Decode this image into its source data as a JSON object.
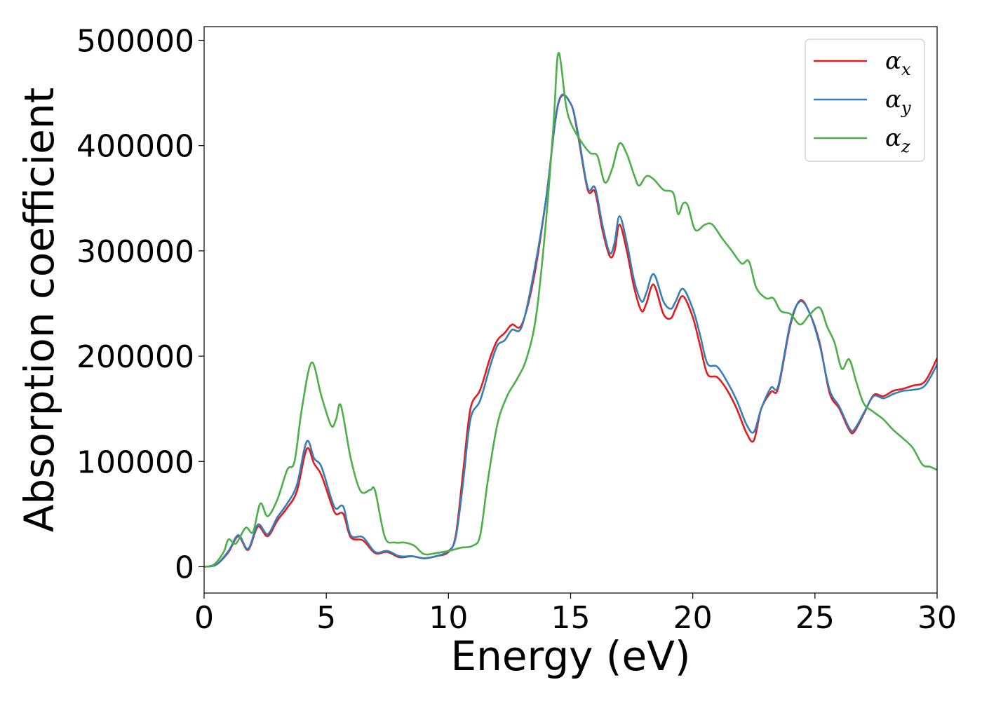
{
  "chart_data": {
    "type": "line",
    "title": "",
    "xlabel": "Energy (eV)",
    "ylabel": "Absorption coefficient",
    "xlim": [
      0,
      30
    ],
    "ylim": [
      -25000,
      513000
    ],
    "xticks": [
      0,
      5,
      10,
      15,
      20,
      25,
      30
    ],
    "yticks": [
      0,
      100000,
      200000,
      300000,
      400000,
      500000
    ],
    "grid": false,
    "legend_position": "top-right",
    "series": [
      {
        "name": "α_x",
        "legend_symbol": "α",
        "legend_sub": "x",
        "color": "#e41a1c",
        "points": [
          [
            0,
            0
          ],
          [
            0.5,
            2000
          ],
          [
            1.0,
            14000
          ],
          [
            1.4,
            29000
          ],
          [
            1.8,
            16000
          ],
          [
            2.2,
            38000
          ],
          [
            2.6,
            29000
          ],
          [
            3.0,
            44000
          ],
          [
            3.4,
            56000
          ],
          [
            3.8,
            72000
          ],
          [
            4.2,
            112000
          ],
          [
            4.5,
            98000
          ],
          [
            4.8,
            87000
          ],
          [
            5.2,
            60000
          ],
          [
            5.4,
            50000
          ],
          [
            5.7,
            50000
          ],
          [
            6.0,
            28000
          ],
          [
            6.5,
            25000
          ],
          [
            7.0,
            13000
          ],
          [
            7.5,
            14000
          ],
          [
            8.0,
            9000
          ],
          [
            8.5,
            10000
          ],
          [
            9.0,
            8000
          ],
          [
            9.5,
            10000
          ],
          [
            10.0,
            14000
          ],
          [
            10.3,
            30000
          ],
          [
            10.6,
            90000
          ],
          [
            10.9,
            150000
          ],
          [
            11.3,
            168000
          ],
          [
            11.7,
            198000
          ],
          [
            12.0,
            215000
          ],
          [
            12.3,
            222000
          ],
          [
            12.6,
            230000
          ],
          [
            13.0,
            230000
          ],
          [
            13.5,
            275000
          ],
          [
            14.0,
            350000
          ],
          [
            14.5,
            440000
          ],
          [
            15.0,
            440000
          ],
          [
            15.3,
            410000
          ],
          [
            15.7,
            358000
          ],
          [
            16.0,
            356000
          ],
          [
            16.3,
            320000
          ],
          [
            16.6,
            295000
          ],
          [
            16.8,
            300000
          ],
          [
            17.0,
            325000
          ],
          [
            17.3,
            300000
          ],
          [
            17.6,
            265000
          ],
          [
            17.9,
            243000
          ],
          [
            18.1,
            250000
          ],
          [
            18.4,
            268000
          ],
          [
            18.8,
            240000
          ],
          [
            19.1,
            236000
          ],
          [
            19.3,
            245000
          ],
          [
            19.6,
            257000
          ],
          [
            20.0,
            237000
          ],
          [
            20.3,
            210000
          ],
          [
            20.6,
            183000
          ],
          [
            21.0,
            180000
          ],
          [
            21.4,
            168000
          ],
          [
            21.8,
            150000
          ],
          [
            22.2,
            127000
          ],
          [
            22.5,
            120000
          ],
          [
            22.8,
            150000
          ],
          [
            23.2,
            166000
          ],
          [
            23.5,
            170000
          ],
          [
            24.0,
            230000
          ],
          [
            24.4,
            253000
          ],
          [
            24.8,
            240000
          ],
          [
            25.2,
            212000
          ],
          [
            25.6,
            165000
          ],
          [
            26.0,
            150000
          ],
          [
            26.4,
            130000
          ],
          [
            26.6,
            128000
          ],
          [
            27.0,
            145000
          ],
          [
            27.4,
            163000
          ],
          [
            27.8,
            162000
          ],
          [
            28.2,
            167000
          ],
          [
            28.6,
            169000
          ],
          [
            29.0,
            172000
          ],
          [
            29.5,
            176000
          ],
          [
            30.0,
            198000
          ]
        ]
      },
      {
        "name": "α_y",
        "legend_symbol": "α",
        "legend_sub": "y",
        "color": "#377eb8",
        "points": [
          [
            0,
            0
          ],
          [
            0.5,
            2000
          ],
          [
            1.0,
            15000
          ],
          [
            1.4,
            30000
          ],
          [
            1.8,
            17000
          ],
          [
            2.2,
            40000
          ],
          [
            2.6,
            31000
          ],
          [
            3.0,
            47000
          ],
          [
            3.4,
            60000
          ],
          [
            3.8,
            78000
          ],
          [
            4.2,
            119000
          ],
          [
            4.5,
            103000
          ],
          [
            4.8,
            95000
          ],
          [
            5.2,
            65000
          ],
          [
            5.4,
            55000
          ],
          [
            5.7,
            57000
          ],
          [
            6.0,
            30000
          ],
          [
            6.5,
            28000
          ],
          [
            7.0,
            14000
          ],
          [
            7.5,
            15000
          ],
          [
            8.0,
            10000
          ],
          [
            8.5,
            10000
          ],
          [
            9.0,
            8000
          ],
          [
            9.5,
            10000
          ],
          [
            10.0,
            15000
          ],
          [
            10.3,
            28000
          ],
          [
            10.6,
            80000
          ],
          [
            10.9,
            140000
          ],
          [
            11.3,
            158000
          ],
          [
            11.7,
            190000
          ],
          [
            12.0,
            210000
          ],
          [
            12.3,
            215000
          ],
          [
            12.6,
            225000
          ],
          [
            13.0,
            228000
          ],
          [
            13.5,
            280000
          ],
          [
            14.0,
            350000
          ],
          [
            14.5,
            441000
          ],
          [
            15.0,
            440000
          ],
          [
            15.3,
            412000
          ],
          [
            15.7,
            360000
          ],
          [
            16.0,
            360000
          ],
          [
            16.3,
            325000
          ],
          [
            16.6,
            298000
          ],
          [
            16.8,
            308000
          ],
          [
            17.0,
            333000
          ],
          [
            17.3,
            308000
          ],
          [
            17.6,
            272000
          ],
          [
            17.9,
            252000
          ],
          [
            18.1,
            260000
          ],
          [
            18.4,
            278000
          ],
          [
            18.8,
            252000
          ],
          [
            19.1,
            245000
          ],
          [
            19.3,
            252000
          ],
          [
            19.6,
            264000
          ],
          [
            20.0,
            245000
          ],
          [
            20.3,
            220000
          ],
          [
            20.6,
            193000
          ],
          [
            21.0,
            190000
          ],
          [
            21.4,
            176000
          ],
          [
            21.8,
            158000
          ],
          [
            22.2,
            135000
          ],
          [
            22.5,
            128000
          ],
          [
            22.8,
            150000
          ],
          [
            23.2,
            170000
          ],
          [
            23.5,
            172000
          ],
          [
            24.0,
            232000
          ],
          [
            24.4,
            252000
          ],
          [
            24.8,
            240000
          ],
          [
            25.2,
            210000
          ],
          [
            25.6,
            168000
          ],
          [
            26.0,
            152000
          ],
          [
            26.4,
            132000
          ],
          [
            26.6,
            130000
          ],
          [
            27.0,
            146000
          ],
          [
            27.4,
            162000
          ],
          [
            27.8,
            160000
          ],
          [
            28.2,
            164000
          ],
          [
            28.6,
            167000
          ],
          [
            29.0,
            168000
          ],
          [
            29.5,
            172000
          ],
          [
            30.0,
            192000
          ]
        ]
      },
      {
        "name": "α_z",
        "legend_symbol": "α",
        "legend_sub": "z",
        "color": "#4daf4a",
        "points": [
          [
            0,
            0
          ],
          [
            0.4,
            2000
          ],
          [
            0.8,
            14000
          ],
          [
            1.0,
            26000
          ],
          [
            1.3,
            22000
          ],
          [
            1.7,
            37000
          ],
          [
            2.0,
            33000
          ],
          [
            2.3,
            60000
          ],
          [
            2.6,
            48000
          ],
          [
            3.0,
            64000
          ],
          [
            3.4,
            92000
          ],
          [
            3.7,
            100000
          ],
          [
            4.0,
            150000
          ],
          [
            4.4,
            194000
          ],
          [
            4.8,
            162000
          ],
          [
            5.2,
            134000
          ],
          [
            5.4,
            140000
          ],
          [
            5.6,
            153000
          ],
          [
            6.0,
            103000
          ],
          [
            6.4,
            72000
          ],
          [
            6.8,
            73000
          ],
          [
            7.0,
            72000
          ],
          [
            7.4,
            28000
          ],
          [
            7.8,
            23000
          ],
          [
            8.2,
            23000
          ],
          [
            8.6,
            20000
          ],
          [
            9.0,
            12000
          ],
          [
            9.5,
            13000
          ],
          [
            10.0,
            15000
          ],
          [
            10.5,
            18000
          ],
          [
            11.0,
            20000
          ],
          [
            11.3,
            30000
          ],
          [
            11.6,
            80000
          ],
          [
            12.0,
            135000
          ],
          [
            12.4,
            162000
          ],
          [
            12.8,
            178000
          ],
          [
            13.2,
            198000
          ],
          [
            13.6,
            240000
          ],
          [
            14.0,
            330000
          ],
          [
            14.3,
            420000
          ],
          [
            14.5,
            488000
          ],
          [
            14.8,
            440000
          ],
          [
            15.0,
            422000
          ],
          [
            15.4,
            405000
          ],
          [
            15.8,
            393000
          ],
          [
            16.1,
            390000
          ],
          [
            16.4,
            365000
          ],
          [
            16.7,
            378000
          ],
          [
            17.0,
            402000
          ],
          [
            17.3,
            392000
          ],
          [
            17.6,
            372000
          ],
          [
            17.8,
            362000
          ],
          [
            18.1,
            371000
          ],
          [
            18.4,
            368000
          ],
          [
            18.8,
            358000
          ],
          [
            19.2,
            355000
          ],
          [
            19.4,
            335000
          ],
          [
            19.6,
            345000
          ],
          [
            19.8,
            343000
          ],
          [
            20.1,
            320000
          ],
          [
            20.5,
            325000
          ],
          [
            20.8,
            325000
          ],
          [
            21.2,
            312000
          ],
          [
            21.6,
            300000
          ],
          [
            22.0,
            288000
          ],
          [
            22.3,
            290000
          ],
          [
            22.6,
            265000
          ],
          [
            23.0,
            255000
          ],
          [
            23.3,
            255000
          ],
          [
            23.6,
            243000
          ],
          [
            24.0,
            240000
          ],
          [
            24.4,
            230000
          ],
          [
            24.8,
            240000
          ],
          [
            25.2,
            246000
          ],
          [
            25.5,
            228000
          ],
          [
            25.8,
            213000
          ],
          [
            26.1,
            188000
          ],
          [
            26.4,
            197000
          ],
          [
            26.7,
            175000
          ],
          [
            27.0,
            155000
          ],
          [
            27.4,
            147000
          ],
          [
            27.8,
            140000
          ],
          [
            28.2,
            130000
          ],
          [
            28.6,
            122000
          ],
          [
            29.0,
            113000
          ],
          [
            29.4,
            97000
          ],
          [
            29.7,
            95000
          ],
          [
            30.0,
            92000
          ]
        ]
      }
    ]
  }
}
